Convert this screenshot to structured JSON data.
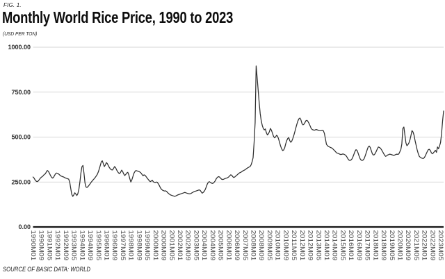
{
  "figure": {
    "fig_label": "FIG. 1.",
    "title": "Monthly World Rice Price, 1990 to 2023",
    "unit_label": "(USD PER TON)",
    "source_label": "SOURCE OF BASIC DATA: WORLD"
  },
  "chart_data": {
    "type": "line",
    "title": "Monthly World Rice Price, 1990 to 2023",
    "ylabel": "USD PER TON",
    "xlabel": "",
    "ylim": [
      0,
      1000
    ],
    "yticks": [
      1000,
      750,
      500,
      250,
      0
    ],
    "ytick_labels": [
      "1000.00",
      "750.00",
      "500.00",
      "250.00",
      "0.00"
    ],
    "xtick_interval_months": 8,
    "x_start": "1990M01",
    "x_end": "2023M08",
    "grid": "horizontal",
    "legend": "none",
    "line_color": "#2e2e2e",
    "xtick_labels": [
      "1990M01",
      "1990M09",
      "1991M05",
      "1992M01",
      "1992M09",
      "1993M05",
      "1994M01",
      "1994M09",
      "1995M05",
      "1996M01",
      "1996M09",
      "1997M05",
      "1998M01",
      "1998M09",
      "1999M05",
      "2000M01",
      "2000M09",
      "2001M05",
      "2002M01",
      "2002M09",
      "2003M05",
      "2004M01",
      "2004M09",
      "2005M05",
      "2006M01",
      "2006M09",
      "2007M05",
      "2008M01",
      "2008M09",
      "2009M05",
      "2010M01",
      "2010M09",
      "2011M05",
      "2012M01",
      "2012M09",
      "2013M05",
      "2014M01",
      "2014M09",
      "2015M05",
      "2016M01",
      "2016M09",
      "2017M05",
      "2018M01",
      "2018M09",
      "2019M05",
      "2020M01",
      "2020M09",
      "2021M05",
      "2022M01",
      "2022M09",
      "2023M05"
    ],
    "series": [
      {
        "name": "World rice price (USD per ton)",
        "frequency": "monthly",
        "start": "1990M01",
        "values": [
          278,
          272,
          262,
          255,
          252,
          255,
          262,
          270,
          276,
          280,
          285,
          292,
          295,
          305,
          314,
          310,
          300,
          288,
          278,
          272,
          275,
          285,
          295,
          300,
          298,
          295,
          290,
          285,
          282,
          280,
          278,
          275,
          272,
          270,
          268,
          266,
          250,
          215,
          182,
          170,
          178,
          190,
          183,
          175,
          185,
          210,
          250,
          300,
          335,
          342,
          300,
          245,
          222,
          220,
          225,
          232,
          240,
          248,
          255,
          262,
          268,
          275,
          283,
          292,
          305,
          322,
          342,
          362,
          368,
          352,
          336,
          345,
          358,
          352,
          340,
          330,
          322,
          318,
          317,
          325,
          336,
          330,
          318,
          308,
          300,
          297,
          305,
          316,
          308,
          295,
          286,
          292,
          300,
          304,
          290,
          268,
          250,
          262,
          280,
          298,
          308,
          314,
          312,
          310,
          308,
          305,
          300,
          292,
          285,
          290,
          287,
          280,
          272,
          265,
          258,
          252,
          255,
          260,
          252,
          248,
          247,
          250,
          248,
          240,
          230,
          218,
          210,
          205,
          202,
          200,
          201,
          198,
          192,
          186,
          182,
          178,
          176,
          174,
          172,
          170,
          172,
          175,
          178,
          180,
          182,
          184,
          186,
          188,
          190,
          192,
          190,
          188,
          186,
          185,
          184,
          186,
          190,
          193,
          196,
          198,
          200,
          202,
          204,
          206,
          204,
          196,
          188,
          192,
          198,
          208,
          222,
          238,
          248,
          252,
          248,
          244,
          242,
          244,
          250,
          258,
          270,
          276,
          280,
          278,
          272,
          266,
          264,
          265,
          268,
          270,
          272,
          274,
          278,
          284,
          290,
          288,
          280,
          275,
          278,
          283,
          288,
          293,
          298,
          302,
          304,
          308,
          312,
          315,
          318,
          322,
          326,
          330,
          333,
          336,
          345,
          362,
          385,
          470,
          580,
          896,
          830,
          760,
          690,
          630,
          590,
          565,
          548,
          540,
          545,
          525,
          512,
          518,
          530,
          548,
          538,
          522,
          505,
          496,
          500,
          510,
          505,
          490,
          470,
          450,
          435,
          425,
          428,
          440,
          462,
          480,
          492,
          497,
          480,
          471,
          478,
          492,
          510,
          530,
          552,
          572,
          590,
          602,
          606,
          595,
          575,
          568,
          572,
          582,
          592,
          593,
          585,
          575,
          562,
          548,
          542,
          540,
          538,
          540,
          542,
          540,
          538,
          536,
          535,
          536,
          538,
          535,
          520,
          490,
          460,
          452,
          448,
          445,
          442,
          440,
          436,
          430,
          425,
          418,
          412,
          410,
          408,
          405,
          403,
          404,
          406,
          405,
          402,
          398,
          390,
          380,
          372,
          370,
          372,
          378,
          390,
          405,
          420,
          430,
          426,
          412,
          395,
          380,
          372,
          370,
          372,
          380,
          395,
          412,
          430,
          445,
          450,
          442,
          425,
          408,
          400,
          402,
          410,
          422,
          435,
          445,
          442,
          438,
          430,
          420,
          410,
          400,
          393,
          395,
          400,
          402,
          405,
          404,
          402,
          400,
          398,
          400,
          403,
          405,
          404,
          406,
          418,
          430,
          462,
          548,
          556,
          512,
          468,
          452,
          458,
          468,
          485,
          510,
          536,
          528,
          510,
          480,
          455,
          430,
          410,
          394,
          388,
          384,
          382,
          381,
          385,
          395,
          408,
          420,
          430,
          432,
          425,
          412,
          407,
          412,
          420,
          426,
          415,
          445,
          435,
          450,
          470,
          520,
          590,
          645
        ]
      }
    ]
  }
}
